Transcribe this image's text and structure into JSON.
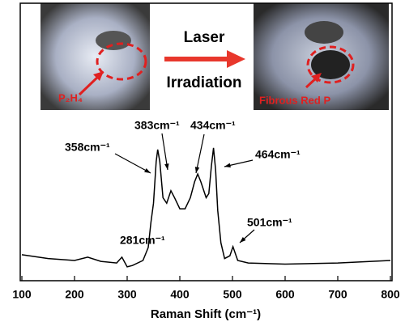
{
  "chart_data": {
    "type": "line",
    "x_label": "Raman Shift (cm⁻¹)",
    "x": [
      100,
      150,
      200,
      225,
      250,
      280,
      290,
      300,
      310,
      330,
      340,
      345,
      350,
      355,
      358,
      362,
      368,
      375,
      383,
      390,
      400,
      410,
      420,
      428,
      434,
      440,
      450,
      455,
      460,
      464,
      468,
      472,
      478,
      485,
      495,
      501,
      510,
      530,
      600,
      700,
      800
    ],
    "values": [
      9.4,
      8,
      7.3,
      8.5,
      7,
      6.4,
      8.5,
      5,
      5.5,
      7.3,
      12,
      21,
      28,
      43,
      47.4,
      43,
      30,
      28,
      32.5,
      30,
      26,
      26,
      30,
      35.7,
      38.6,
      35.7,
      30,
      31.5,
      41.5,
      48,
      40,
      25.4,
      13.7,
      8,
      9,
      12.3,
      7.3,
      6.4,
      6,
      6.4,
      7.3
    ],
    "color": "#000000",
    "xlim": [
      100,
      800
    ],
    "xticks": [
      100,
      200,
      300,
      400,
      500,
      600,
      700,
      800
    ],
    "ylim": [
      0,
      100
    ],
    "annotations": [
      "358cm⁻¹",
      "383cm⁻¹",
      "434cm⁻¹",
      "464cm⁻¹",
      "501cm⁻¹",
      "281cm⁻¹"
    ],
    "inset": {
      "left_label": "P₂H₄",
      "right_label": "Fibrous Red P",
      "arrow_top": "Laser",
      "arrow_bottom": "Irradiation"
    }
  }
}
